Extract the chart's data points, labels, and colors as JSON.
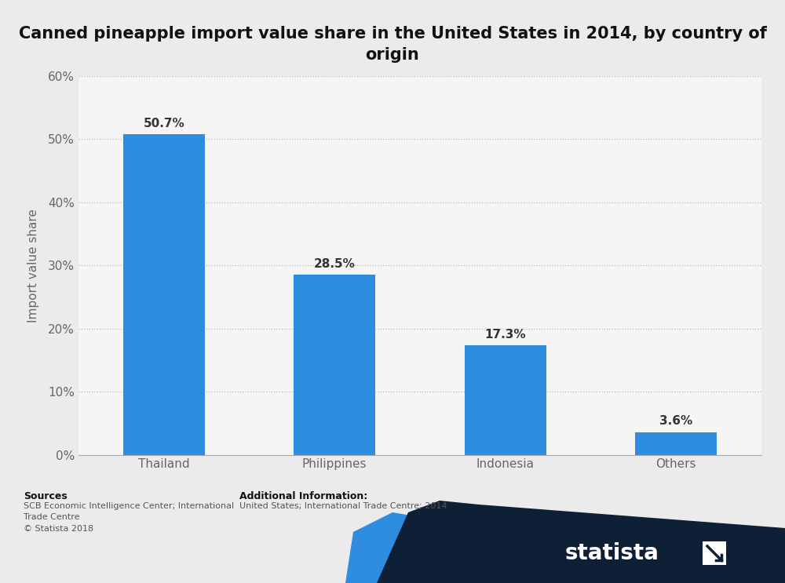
{
  "title": "Canned pineapple import value share in the United States in 2014, by country of\norigin",
  "categories": [
    "Thailand",
    "Philippines",
    "Indonesia",
    "Others"
  ],
  "values": [
    50.7,
    28.5,
    17.3,
    3.6
  ],
  "bar_color": "#2f8de0",
  "ylabel": "Import value share",
  "ylim": [
    0,
    60
  ],
  "yticks": [
    0,
    10,
    20,
    30,
    40,
    50,
    60
  ],
  "ytick_labels": [
    "0%",
    "10%",
    "20%",
    "30%",
    "40%",
    "50%",
    "60%"
  ],
  "background_color": "#ebebeb",
  "plot_area_color": "#f5f5f5",
  "title_fontsize": 15,
  "label_fontsize": 11,
  "tick_fontsize": 11,
  "bar_label_fontsize": 11,
  "footer_bg_color": "#f0f0f0",
  "statista_dark_color": "#0d2035",
  "statista_blue_color": "#2f8de0"
}
